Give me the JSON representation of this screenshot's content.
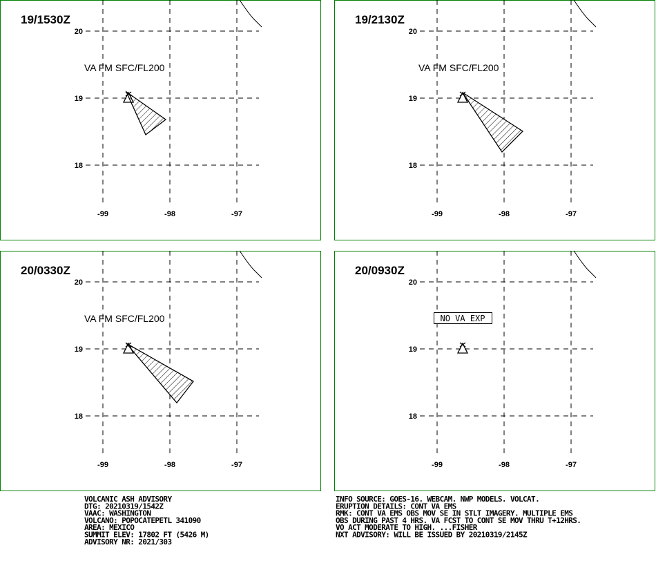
{
  "panels": [
    {
      "time": "19/1530Z",
      "label": "VA FM SFC/FL200",
      "lat_ticks": [
        20,
        19,
        18
      ],
      "lon_ticks": [
        -99,
        -98,
        -97
      ]
    },
    {
      "time": "19/2130Z",
      "label": "VA FM SFC/FL200",
      "lat_ticks": [
        20,
        19,
        18
      ],
      "lon_ticks": [
        -99,
        -98,
        -97
      ]
    },
    {
      "time": "20/0330Z",
      "label": "VA FM SFC/FL200",
      "lat_ticks": [
        20,
        19,
        18
      ],
      "lon_ticks": [
        -99,
        -98,
        -97
      ]
    },
    {
      "time": "20/0930Z",
      "label": "NO VA EXP",
      "lat_ticks": [
        20,
        19,
        18
      ],
      "lon_ticks": [
        -99,
        -98,
        -97
      ]
    }
  ],
  "advisory_left": [
    "VOLCANIC ASH ADVISORY",
    "DTG: 20210319/1542Z",
    "VAAC: WASHINGTON",
    "VOLCANO: POPOCATEPETL 341090",
    "AREA: MEXICO",
    "SUMMIT ELEV: 17802 FT (5426 M)",
    "ADVISORY NR: 2021/303"
  ],
  "advisory_right": [
    "INFO SOURCE: GOES-16. WEBCAM. NWP MODELS. VOLCAT.",
    "ERUPTION DETAILS: CONT VA EMS",
    "RMK: CONT VA EMS OBS MOV SE IN STLT IMAGERY. MULTIPLE EMS",
    "OBS DURING PAST 4 HRS. VA FCST TO CONT SE MOV THRU T+12HRS.",
    "VO ACT MODERATE TO HIGH. ...FISHER",
    "NXT ADVISORY: WILL BE ISSUED BY 20210319/2145Z"
  ]
}
